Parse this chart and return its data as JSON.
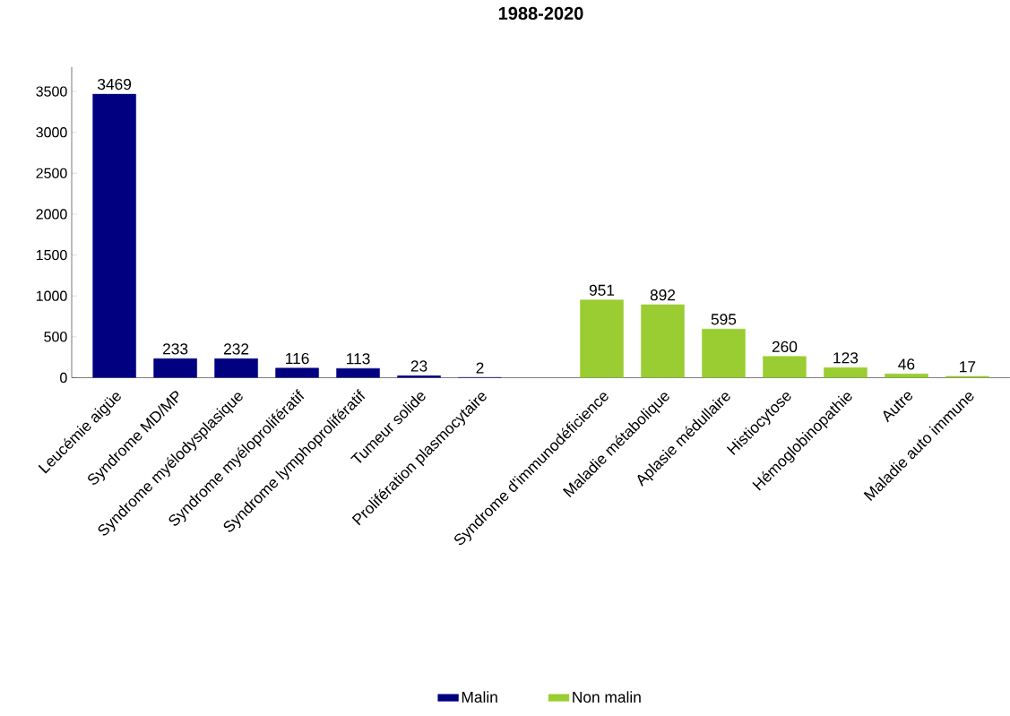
{
  "chart_data": {
    "type": "bar",
    "title": "1988-2020",
    "categories": [
      "Leucémie aigüe",
      "Syndrome MD/MP",
      "Syndrome myélodysplasique",
      "Syndrome myéloprolifératif",
      "Syndrome lymphoprolifératif",
      "Tumeur solide",
      "Prolifération plasmocytaire",
      null,
      "Syndrome d'immunodéficience",
      "Maladie métabolique",
      "Aplasie médullaire",
      "Histiocytose",
      "Hémoglobinopathie",
      "Autre",
      "Maladie auto immune"
    ],
    "series": [
      {
        "name": "Malin",
        "color": "#000080",
        "values": [
          3469,
          233,
          232,
          116,
          113,
          23,
          2,
          null,
          null,
          null,
          null,
          null,
          null,
          null,
          null
        ]
      },
      {
        "name": "Non malin",
        "color": "#9acd32",
        "values": [
          null,
          null,
          null,
          null,
          null,
          null,
          null,
          null,
          951,
          892,
          595,
          260,
          123,
          46,
          17
        ]
      }
    ],
    "ylim": [
      0,
      3800
    ],
    "yticks": [
      0,
      500,
      1000,
      1500,
      2000,
      2500,
      3000,
      3500
    ],
    "data_labels": true,
    "legend": "bottom",
    "grid": false
  }
}
